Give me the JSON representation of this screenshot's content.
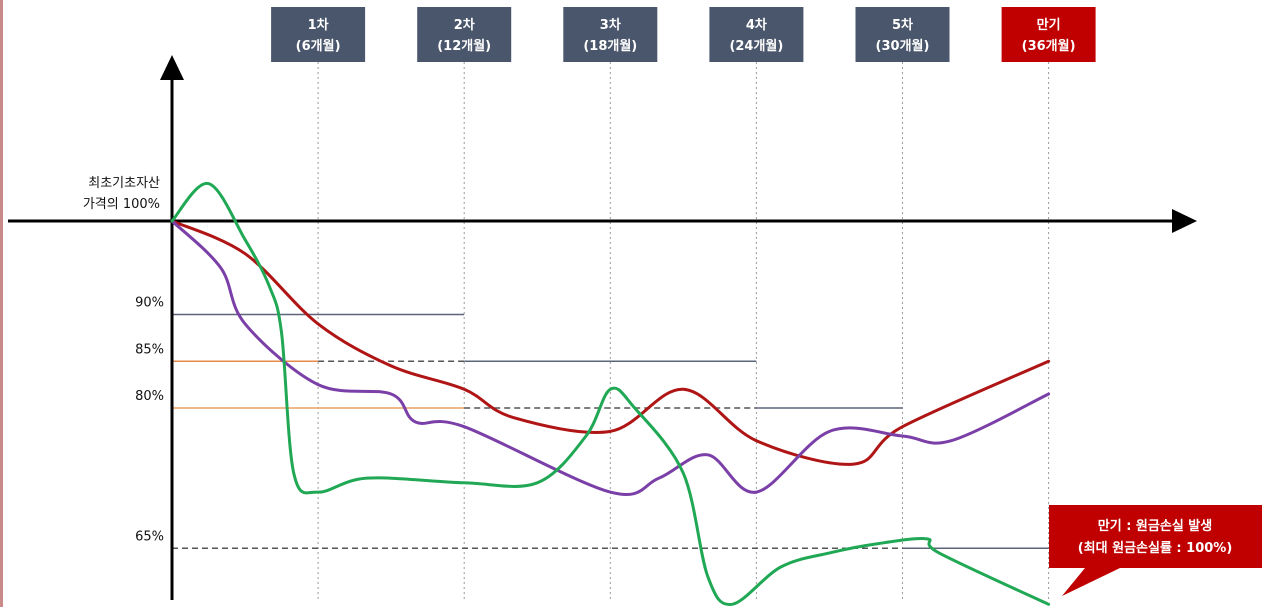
{
  "chart_data": {
    "type": "line",
    "y_axis_label": [
      "최초기초자산",
      "가격의 100%"
    ],
    "y_levels": [
      {
        "label": "90%",
        "value": 90
      },
      {
        "label": "85%",
        "value": 85
      },
      {
        "label": "80%",
        "value": 80
      },
      {
        "label": "65%",
        "value": 65
      }
    ],
    "observations": [
      {
        "title": "1차",
        "subtitle": "(6개월)",
        "month": 6,
        "color": "#4a566b"
      },
      {
        "title": "2차",
        "subtitle": "(12개월)",
        "month": 12,
        "color": "#4a566b"
      },
      {
        "title": "3차",
        "subtitle": "(18개월)",
        "month": 18,
        "color": "#4a566b"
      },
      {
        "title": "4차",
        "subtitle": "(24개월)",
        "month": 24,
        "color": "#4a566b"
      },
      {
        "title": "5차",
        "subtitle": "(30개월)",
        "month": 30,
        "color": "#4a566b"
      },
      {
        "title": "만기",
        "subtitle": "(36개월)",
        "month": 36,
        "color": "#c00000"
      }
    ],
    "barriers": [
      {
        "level": 90,
        "segments": [
          {
            "from": 0,
            "to": 12,
            "style": "solid",
            "color": "#5b6478"
          }
        ]
      },
      {
        "level": 85,
        "segments": [
          {
            "from": 0,
            "to": 6,
            "style": "solid",
            "color": "#e88a4a"
          },
          {
            "from": 6,
            "to": 12,
            "style": "dashed",
            "color": "#555555"
          },
          {
            "from": 12,
            "to": 24,
            "style": "solid",
            "color": "#5b6478"
          }
        ]
      },
      {
        "level": 80,
        "segments": [
          {
            "from": 0,
            "to": 12,
            "style": "solid",
            "color": "#e8a060"
          },
          {
            "from": 12,
            "to": 24,
            "style": "dashed",
            "color": "#555555"
          },
          {
            "from": 24,
            "to": 30,
            "style": "solid",
            "color": "#5b6478"
          }
        ]
      },
      {
        "level": 65,
        "segments": [
          {
            "from": 0,
            "to": 30,
            "style": "dashed",
            "color": "#555555"
          },
          {
            "from": 30,
            "to": 36,
            "style": "solid",
            "color": "#5b6478"
          }
        ]
      }
    ],
    "series": [
      {
        "color": "#b01515",
        "points": [
          [
            0,
            100
          ],
          [
            3,
            96.5
          ],
          [
            6,
            89
          ],
          [
            9,
            84.5
          ],
          [
            12,
            82
          ],
          [
            14,
            79
          ],
          [
            18,
            77.5
          ],
          [
            21,
            82
          ],
          [
            24,
            76.5
          ],
          [
            28,
            74
          ],
          [
            30,
            78
          ],
          [
            36,
            85
          ]
        ]
      },
      {
        "color": "#7b3fa8",
        "points": [
          [
            0,
            100
          ],
          [
            2,
            95
          ],
          [
            3,
            89
          ],
          [
            6,
            82.5
          ],
          [
            9,
            81.5
          ],
          [
            10,
            78.5
          ],
          [
            12,
            78
          ],
          [
            18,
            71
          ],
          [
            20,
            72.5
          ],
          [
            22,
            75
          ],
          [
            24,
            71
          ],
          [
            27,
            77.5
          ],
          [
            30,
            77
          ],
          [
            32,
            76.5
          ],
          [
            36,
            81.5
          ]
        ]
      },
      {
        "color": "#20a855",
        "points": [
          [
            0,
            100
          ],
          [
            1.5,
            104
          ],
          [
            3,
            98
          ],
          [
            4,
            93
          ],
          [
            4.5,
            88
          ],
          [
            5,
            73
          ],
          [
            6,
            71
          ],
          [
            8,
            72.5
          ],
          [
            12,
            72
          ],
          [
            15,
            72
          ],
          [
            17,
            77
          ],
          [
            18,
            82
          ],
          [
            19,
            80
          ],
          [
            21,
            73
          ],
          [
            22,
            62
          ],
          [
            23,
            59
          ],
          [
            25,
            63
          ],
          [
            27,
            64.5
          ],
          [
            29,
            65.5
          ],
          [
            31,
            66
          ],
          [
            31.5,
            64.5
          ],
          [
            36,
            59
          ]
        ]
      }
    ],
    "callout": {
      "line1": "만기 : 원금손실 발생",
      "line2": "(최대 원금손실률 : 100%)",
      "color": "#c00000"
    }
  }
}
